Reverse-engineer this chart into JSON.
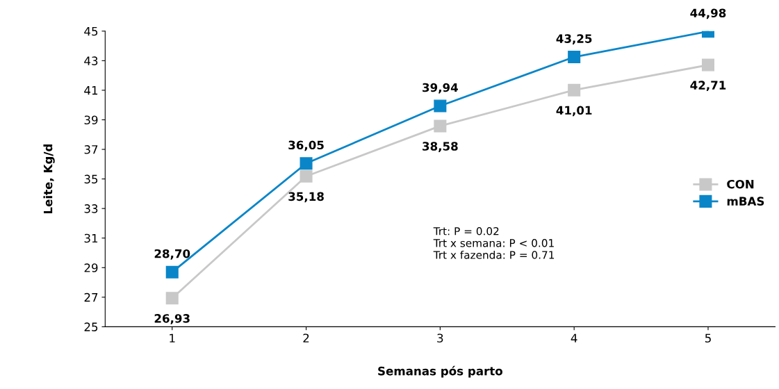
{
  "chart_data": {
    "type": "line",
    "xlabel": "Semanas pós parto",
    "ylabel": "Leite, Kg/d",
    "categories": [
      "1",
      "2",
      "3",
      "4",
      "5"
    ],
    "series": [
      {
        "name": "CON",
        "color": "#c8c8c8",
        "values": [
          26.93,
          35.18,
          38.58,
          41.01,
          42.71
        ],
        "value_labels": [
          "26,93",
          "35,18",
          "38,58",
          "41,01",
          "42,71"
        ]
      },
      {
        "name": "mBAS",
        "color": "#0a86c8",
        "values": [
          28.7,
          36.05,
          39.94,
          43.25,
          44.98
        ],
        "value_labels": [
          "28,70",
          "36,05",
          "39,94",
          "43,25",
          "44,98"
        ]
      }
    ],
    "ylim": [
      25,
      45
    ],
    "yticks": [
      25,
      27,
      29,
      31,
      33,
      35,
      37,
      39,
      41,
      43,
      45
    ],
    "annotations": [
      "Trt: P = 0.02\nTrt x semana: P < 0.01\nTrt x fazenda: P = 0.71"
    ],
    "legend": "right",
    "marker": "square",
    "line_style": "solid",
    "grid": false
  }
}
